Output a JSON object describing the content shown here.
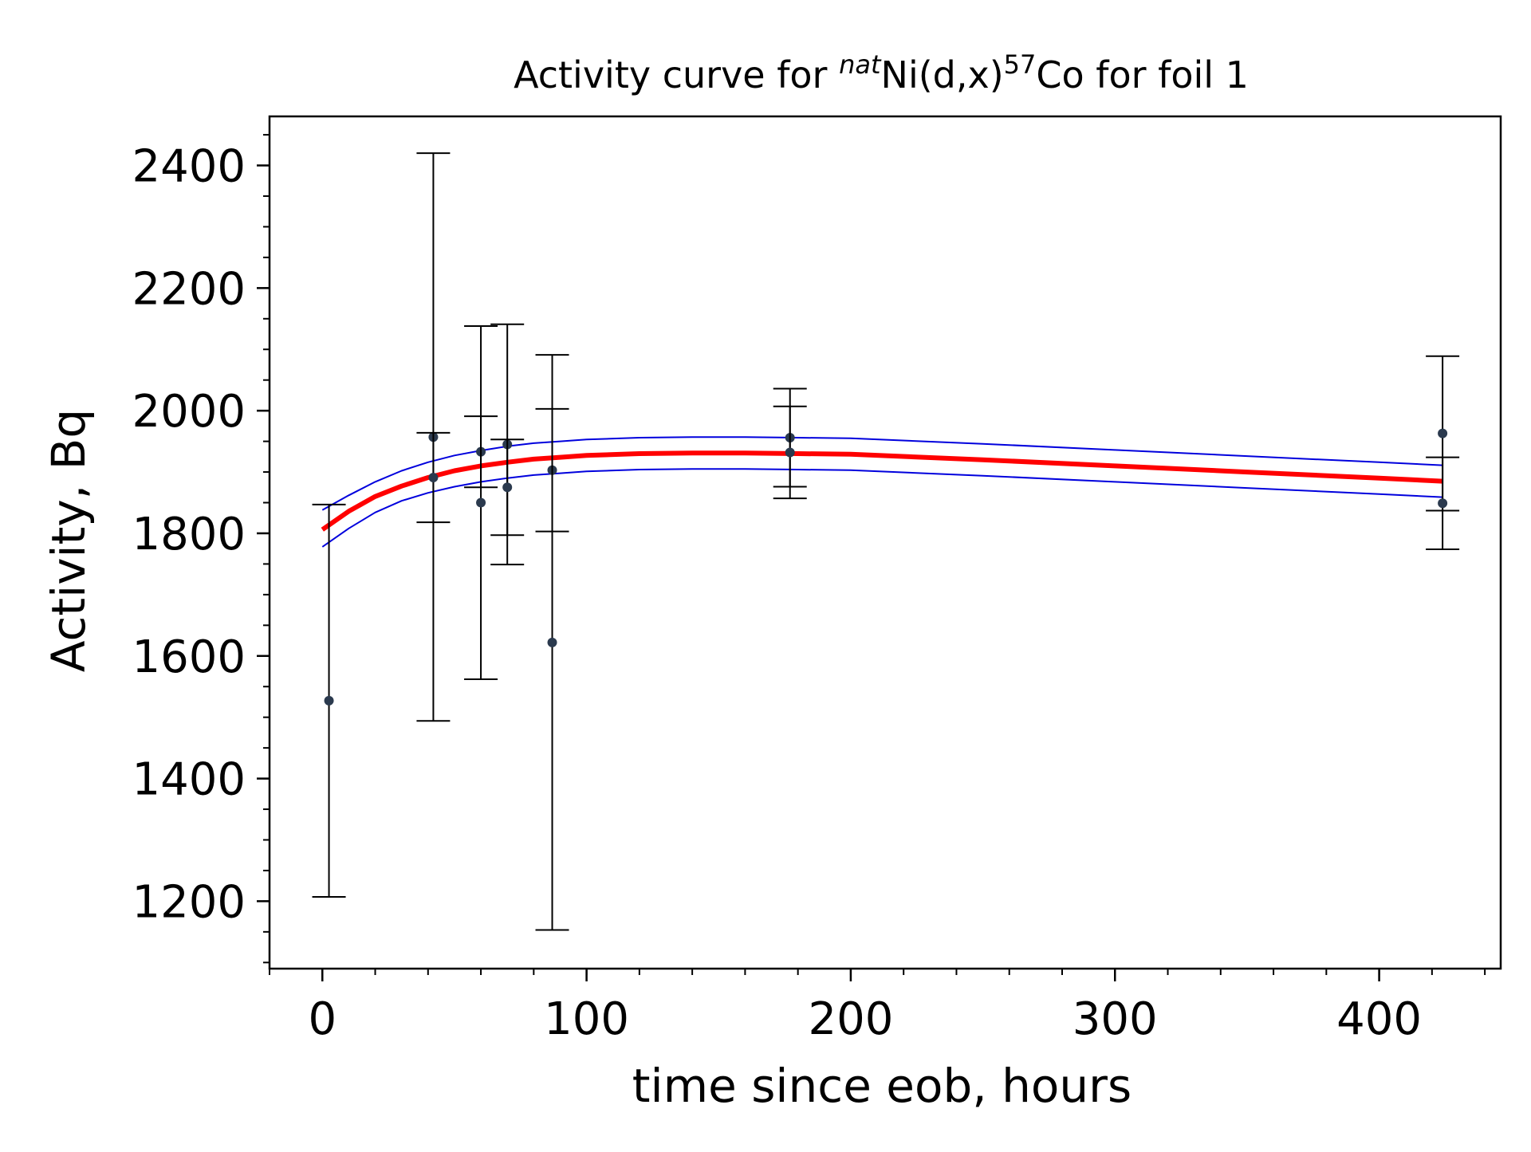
{
  "colors": {
    "fit": "#ff0000",
    "band": "#0000dd",
    "points": "#2b3a4e",
    "errorbars": "#000000",
    "axes": "#000000",
    "background": "#ffffff"
  },
  "chart_data": {
    "type": "scatter",
    "title": {
      "prefix": "Activity curve for ",
      "sup1": "nat",
      "mid": "Ni(d,x)",
      "sup2": "57",
      "suffix": "Co for foil 1"
    },
    "xlabel": "time since eob, hours",
    "ylabel": "Activity, Bq",
    "xlim": [
      -20,
      446
    ],
    "ylim": [
      1090,
      2480
    ],
    "x_ticks": [
      0,
      100,
      200,
      300,
      400
    ],
    "y_ticks": [
      1200,
      1400,
      1600,
      1800,
      2000,
      2200,
      2400
    ],
    "x_tick_labels": [
      "0",
      "100",
      "200",
      "300",
      "400"
    ],
    "y_tick_labels": [
      "1200",
      "1400",
      "1600",
      "1800",
      "2000",
      "2200",
      "2400"
    ],
    "x_minor_step": 20,
    "y_minor_step": 50,
    "grid": false,
    "legend": "none",
    "points": [
      {
        "x": 2.5,
        "y": 1527,
        "err": 320
      },
      {
        "x": 42,
        "y": 1957,
        "err": 463
      },
      {
        "x": 42,
        "y": 1891,
        "err": 73
      },
      {
        "x": 60,
        "y": 1933,
        "err": 58
      },
      {
        "x": 60,
        "y": 1850,
        "err": 288
      },
      {
        "x": 70,
        "y": 1945,
        "err": 196
      },
      {
        "x": 70,
        "y": 1875,
        "err": 78
      },
      {
        "x": 87,
        "y": 1903,
        "err": 100
      },
      {
        "x": 87,
        "y": 1622,
        "err": 469
      },
      {
        "x": 177,
        "y": 1956,
        "err": 80
      },
      {
        "x": 177,
        "y": 1932,
        "err": 75
      },
      {
        "x": 424,
        "y": 1963,
        "err": 126
      },
      {
        "x": 424,
        "y": 1849,
        "err": 75
      }
    ],
    "fit_curve": {
      "x": [
        0,
        10,
        20,
        30,
        40,
        50,
        60,
        70,
        80,
        90,
        100,
        120,
        140,
        160,
        180,
        200,
        250,
        300,
        350,
        400,
        424
      ],
      "y": [
        1806,
        1836,
        1860,
        1877,
        1891,
        1902,
        1910,
        1916,
        1921,
        1924,
        1927,
        1930,
        1931,
        1931,
        1930,
        1929,
        1920,
        1910,
        1900,
        1890,
        1885
      ]
    },
    "band_upper": {
      "x": [
        0,
        10,
        20,
        30,
        40,
        50,
        60,
        70,
        80,
        90,
        100,
        120,
        140,
        160,
        180,
        200,
        250,
        300,
        350,
        400,
        424
      ],
      "y": [
        1838,
        1862,
        1884,
        1902,
        1916,
        1927,
        1935,
        1942,
        1947,
        1950,
        1953,
        1956,
        1957,
        1957,
        1956,
        1955,
        1946,
        1936,
        1926,
        1916,
        1911
      ]
    },
    "band_lower": {
      "x": [
        0,
        10,
        20,
        30,
        40,
        50,
        60,
        70,
        80,
        90,
        100,
        120,
        140,
        160,
        180,
        200,
        250,
        300,
        350,
        400,
        424
      ],
      "y": [
        1778,
        1808,
        1834,
        1853,
        1866,
        1876,
        1884,
        1890,
        1895,
        1898,
        1901,
        1904,
        1905,
        1905,
        1904,
        1903,
        1894,
        1884,
        1874,
        1864,
        1859
      ]
    }
  }
}
